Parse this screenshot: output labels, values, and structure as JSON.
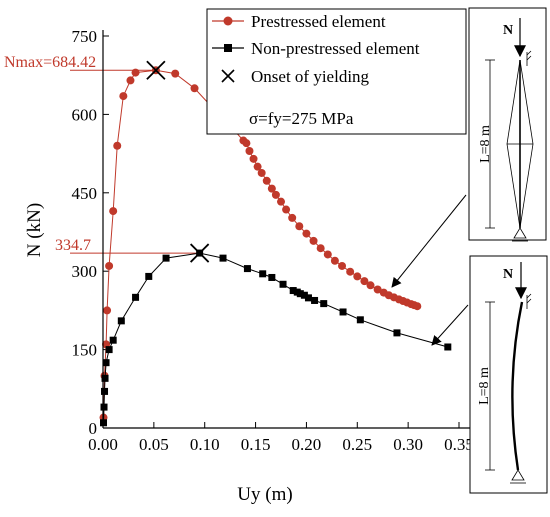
{
  "chart_data": {
    "type": "line",
    "xlabel": "Uy (m)",
    "ylabel": "N (kN)",
    "xlim": [
      0,
      0.35
    ],
    "ylim": [
      0,
      750
    ],
    "x_ticks": [
      "0.00",
      "0.05",
      "0.10",
      "0.15",
      "0.20",
      "0.25",
      "0.30",
      "0.35"
    ],
    "x_tick_values": [
      0,
      0.05,
      0.1,
      0.15,
      0.2,
      0.25,
      0.3,
      0.35
    ],
    "y_ticks": [
      "0",
      "150",
      "300",
      "450",
      "600",
      "750"
    ],
    "y_tick_values": [
      0,
      150,
      300,
      450,
      600,
      750
    ],
    "series": [
      {
        "name": "Prestressed element",
        "color": "#c0392b",
        "marker": "circle",
        "points": [
          [
            0.0005,
            20
          ],
          [
            0.0015,
            100
          ],
          [
            0.003,
            160
          ],
          [
            0.004,
            225
          ],
          [
            0.006,
            310
          ],
          [
            0.01,
            415
          ],
          [
            0.014,
            540
          ],
          [
            0.02,
            635
          ],
          [
            0.027,
            665
          ],
          [
            0.032,
            680
          ],
          [
            0.052,
            684.42
          ],
          [
            0.071,
            678
          ],
          [
            0.09,
            650
          ],
          [
            0.108,
            612
          ],
          [
            0.124,
            580
          ],
          [
            0.138,
            550
          ],
          [
            0.141,
            545
          ],
          [
            0.144,
            530
          ],
          [
            0.148,
            515
          ],
          [
            0.152,
            500
          ],
          [
            0.156,
            488
          ],
          [
            0.161,
            473
          ],
          [
            0.166,
            458
          ],
          [
            0.17,
            446
          ],
          [
            0.175,
            433
          ],
          [
            0.18,
            418
          ],
          [
            0.186,
            402
          ],
          [
            0.193,
            386
          ],
          [
            0.2,
            372
          ],
          [
            0.207,
            358
          ],
          [
            0.214,
            344
          ],
          [
            0.221,
            332
          ],
          [
            0.228,
            320
          ],
          [
            0.235,
            310
          ],
          [
            0.243,
            299
          ],
          [
            0.25,
            290
          ],
          [
            0.257,
            281
          ],
          [
            0.263,
            273
          ],
          [
            0.27,
            265
          ],
          [
            0.276,
            259
          ],
          [
            0.281,
            254
          ],
          [
            0.286,
            250
          ],
          [
            0.291,
            246
          ],
          [
            0.295,
            243
          ],
          [
            0.299,
            240
          ],
          [
            0.303,
            237
          ],
          [
            0.306,
            235
          ],
          [
            0.309,
            233
          ]
        ]
      },
      {
        "name": "Non-prestressed element",
        "color": "#000000",
        "marker": "square",
        "points": [
          [
            0.0005,
            10
          ],
          [
            0.001,
            40
          ],
          [
            0.0015,
            70
          ],
          [
            0.002,
            95
          ],
          [
            0.003,
            125
          ],
          [
            0.006,
            150
          ],
          [
            0.01,
            168
          ],
          [
            0.018,
            205
          ],
          [
            0.032,
            250
          ],
          [
            0.045,
            290
          ],
          [
            0.062,
            325
          ],
          [
            0.095,
            334.7
          ],
          [
            0.118,
            325
          ],
          [
            0.142,
            305
          ],
          [
            0.157,
            295
          ],
          [
            0.166,
            288
          ],
          [
            0.177,
            275
          ],
          [
            0.187,
            263
          ],
          [
            0.191,
            260
          ],
          [
            0.194,
            257
          ],
          [
            0.198,
            254
          ],
          [
            0.202,
            249
          ],
          [
            0.208,
            244
          ],
          [
            0.217,
            238
          ],
          [
            0.236,
            222
          ],
          [
            0.253,
            207
          ],
          [
            0.289,
            182
          ],
          [
            0.339,
            155
          ]
        ]
      }
    ],
    "legend": {
      "position": "top-right",
      "items": [
        "Prestressed element",
        "Non-prestressed element",
        "Onset of yielding"
      ],
      "note": "σ=fy=275 MPa"
    },
    "annotations": {
      "nmax_prestressed": "Nmax=684.42",
      "nmax_nonprestressed": "334.7",
      "yield_points": [
        [
          0.052,
          684.42
        ],
        [
          0.095,
          334.7
        ]
      ]
    },
    "insets": [
      {
        "load_label": "N",
        "length_label": "L=8 m"
      },
      {
        "load_label": "N",
        "length_label": "L=8 m"
      }
    ]
  }
}
